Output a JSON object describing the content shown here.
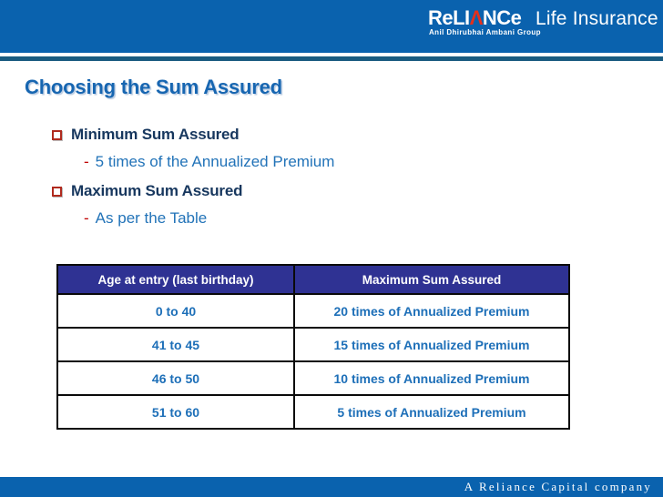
{
  "logo": {
    "wordmark_pre": "ReLI",
    "triangle": "Λ",
    "wordmark_post": "NCe",
    "product": "Life Insurance",
    "subtitle": "Anil Dhirubhai Ambani Group"
  },
  "title": "Choosing the Sum Assured",
  "bullets": [
    {
      "label": "Minimum Sum Assured",
      "dash": "-",
      "sub": "5 times of the Annualized Premium"
    },
    {
      "label": "Maximum Sum Assured",
      "dash": "-",
      "sub": "As per the Table"
    }
  ],
  "table": {
    "headers": [
      "Age at entry (last birthday)",
      "Maximum Sum Assured"
    ],
    "rows": [
      {
        "age": "0 to 40",
        "max": "20 times of Annualized Premium"
      },
      {
        "age": "41 to 45",
        "max": "15 times of Annualized Premium"
      },
      {
        "age": "46 to 50",
        "max": "10 times of Annualized Premium"
      },
      {
        "age": "51 to 60",
        "max": "5 times of Annualized Premium"
      }
    ]
  },
  "footer": {
    "text": "A Reliance Capital company"
  },
  "colors": {
    "bar_blue": "#0A62AE",
    "divider_dark": "#1A5B80",
    "title_blue": "#1766B1",
    "bullet_navy": "#17375E",
    "sub_blue": "#2273B8",
    "accent_red": "#C00000",
    "table_header_bg": "#2F3293",
    "cell_blue": "#1D6FB8",
    "logo_triangle_red": "#E5301B"
  }
}
